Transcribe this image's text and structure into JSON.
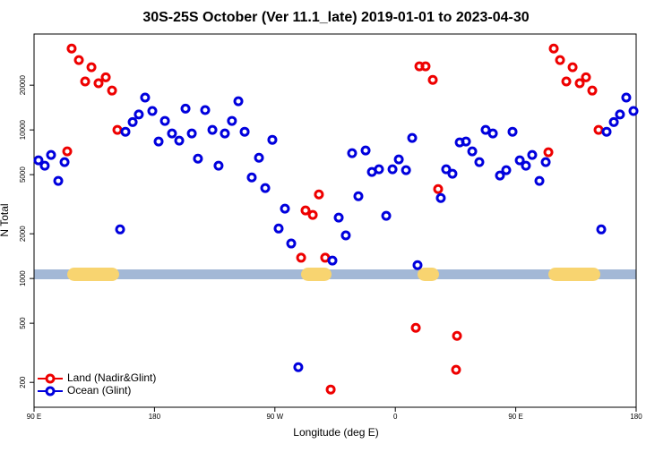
{
  "chart_data": {
    "type": "scatter",
    "title": "30S-25S October (Ver 11.1_late)   2019-01-01 to 2023-04-30",
    "x_label": "Longitude (deg E)",
    "y_label": "N Total",
    "log_scale": true,
    "xlim": [
      90,
      540
    ],
    "xticks": [
      {
        "value": 90,
        "label": "90 E"
      },
      180,
      {
        "value": 270,
        "label": "90 W"
      },
      {
        "value": 360,
        "label": "0"
      },
      {
        "value": 450,
        "label": "90 E"
      },
      {
        "value": 540,
        "label": "180"
      }
    ],
    "ylim": [
      136,
      44200
    ],
    "yticks": [
      200,
      500,
      1000,
      2000,
      5000,
      10000,
      20000
    ],
    "legend": "bottom-left",
    "series": [
      {
        "name": "Land (Nadir&Glint)",
        "color": "#ee0000",
        "x": [
          118.1,
          123.5,
          128.2,
          132.9,
          138.2,
          143.6,
          148.3,
          152.3,
          114.8,
          289.6,
          292.9,
          298.3,
          302.9,
          307.6,
          311.7,
          375.3,
          378.0,
          382.6,
          388.0,
          392.0,
          406.1,
          405.4,
          474.4,
          478.4,
          483.1,
          487.8,
          492.5,
          497.8,
          502.5,
          507.2,
          511.9
        ],
        "values": [
          35300,
          29500,
          21200,
          26400,
          20600,
          22600,
          18400,
          10000,
          7170,
          1380,
          2870,
          2680,
          3680,
          1380,
          179,
          466,
          26800,
          26800,
          21700,
          4000,
          411,
          243,
          7070,
          35300,
          29500,
          21200,
          26400,
          20600,
          22600,
          18400,
          10000
        ]
      },
      {
        "name": "Ocean (Glint)",
        "color": "#0000dd",
        "x": [
          93.3,
          98.0,
          102.7,
          108.1,
          112.8,
          154.3,
          158.3,
          163.7,
          168.3,
          173.0,
          178.4,
          183.1,
          187.8,
          193.1,
          198.5,
          203.2,
          207.9,
          212.5,
          217.9,
          223.3,
          227.9,
          232.6,
          237.9,
          242.7,
          247.4,
          252.7,
          258.1,
          262.8,
          268.1,
          272.8,
          277.5,
          282.2,
          287.5,
          313.0,
          317.7,
          323.0,
          327.7,
          332.4,
          337.8,
          342.5,
          347.8,
          353.2,
          357.9,
          362.6,
          368.0,
          372.6,
          376.6,
          394.0,
          398.0,
          402.7,
          408.1,
          412.8,
          417.5,
          422.8,
          427.5,
          432.9,
          438.2,
          442.9,
          447.6,
          453.0,
          457.6,
          462.3,
          467.7,
          472.4,
          513.9,
          517.9,
          523.3,
          527.9,
          532.6,
          538.0
        ],
        "values": [
          6240,
          5740,
          6780,
          4540,
          6070,
          2140,
          9720,
          11300,
          12700,
          16500,
          13400,
          8350,
          11500,
          9460,
          8470,
          13900,
          9460,
          6410,
          13600,
          10000,
          5740,
          9460,
          11500,
          15600,
          9720,
          4790,
          6500,
          4060,
          8580,
          2170,
          2950,
          1720,
          253,
          1320,
          2570,
          1950,
          6970,
          3580,
          7270,
          5210,
          5430,
          2640,
          5430,
          6330,
          5360,
          8830,
          1230,
          3480,
          5430,
          5070,
          8240,
          8350,
          7170,
          6070,
          10000,
          9460,
          4930,
          5360,
          9720,
          6240,
          5740,
          6780,
          4540,
          6070,
          2140,
          9720,
          11300,
          12700,
          16500,
          13400
        ]
      }
    ]
  }
}
